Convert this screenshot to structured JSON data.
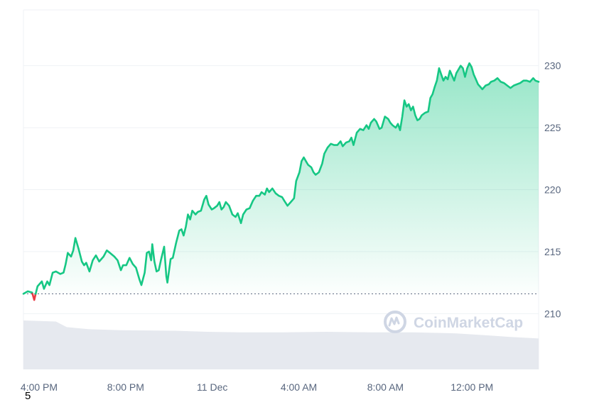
{
  "chart_data": {
    "type": "area",
    "y_ticks": [
      210,
      215,
      220,
      225,
      230
    ],
    "x_ticks": [
      "4:00 PM",
      "8:00 PM",
      "11 Dec",
      "4:00 AM",
      "8:00 AM",
      "12:00 PM"
    ],
    "x_tick_hours": [
      0,
      4,
      8,
      12,
      16,
      20
    ],
    "x_range_hours": [
      0,
      23.8
    ],
    "ylim": [
      205.5,
      234.5
    ],
    "baseline": 211.6,
    "series": [
      {
        "values": [
          [
            0.0,
            211.6
          ],
          [
            0.2,
            211.8
          ],
          [
            0.4,
            211.7
          ],
          [
            0.5,
            211.1
          ],
          [
            0.55,
            211.5
          ],
          [
            0.65,
            212.2
          ],
          [
            0.85,
            212.6
          ],
          [
            0.95,
            212.0
          ],
          [
            1.1,
            212.6
          ],
          [
            1.2,
            212.3
          ],
          [
            1.35,
            213.3
          ],
          [
            1.5,
            213.4
          ],
          [
            1.7,
            213.2
          ],
          [
            1.85,
            213.3
          ],
          [
            1.95,
            214.0
          ],
          [
            2.05,
            214.9
          ],
          [
            2.2,
            214.6
          ],
          [
            2.3,
            215.1
          ],
          [
            2.4,
            216.1
          ],
          [
            2.55,
            215.2
          ],
          [
            2.7,
            214.2
          ],
          [
            2.8,
            213.9
          ],
          [
            2.9,
            214.1
          ],
          [
            3.05,
            213.4
          ],
          [
            3.2,
            214.3
          ],
          [
            3.35,
            214.7
          ],
          [
            3.5,
            214.2
          ],
          [
            3.7,
            214.6
          ],
          [
            3.85,
            215.1
          ],
          [
            4.0,
            214.9
          ],
          [
            4.2,
            214.6
          ],
          [
            4.35,
            214.3
          ],
          [
            4.5,
            213.5
          ],
          [
            4.6,
            213.9
          ],
          [
            4.75,
            213.9
          ],
          [
            4.9,
            214.5
          ],
          [
            5.05,
            214.0
          ],
          [
            5.2,
            213.7
          ],
          [
            5.35,
            212.8
          ],
          [
            5.45,
            212.3
          ],
          [
            5.6,
            213.3
          ],
          [
            5.7,
            214.9
          ],
          [
            5.8,
            215.0
          ],
          [
            5.9,
            214.3
          ],
          [
            5.95,
            215.6
          ],
          [
            6.05,
            214.2
          ],
          [
            6.15,
            213.4
          ],
          [
            6.25,
            213.5
          ],
          [
            6.35,
            214.3
          ],
          [
            6.5,
            215.4
          ],
          [
            6.6,
            213.0
          ],
          [
            6.65,
            212.5
          ],
          [
            6.8,
            214.4
          ],
          [
            6.9,
            214.5
          ],
          [
            7.05,
            215.7
          ],
          [
            7.2,
            216.7
          ],
          [
            7.3,
            216.8
          ],
          [
            7.4,
            216.3
          ],
          [
            7.5,
            217.0
          ],
          [
            7.6,
            218.0
          ],
          [
            7.7,
            217.6
          ],
          [
            7.8,
            218.3
          ],
          [
            7.95,
            218.0
          ],
          [
            8.05,
            218.2
          ],
          [
            8.2,
            218.3
          ],
          [
            8.35,
            219.2
          ],
          [
            8.45,
            219.5
          ],
          [
            8.55,
            218.8
          ],
          [
            8.7,
            218.4
          ],
          [
            8.8,
            218.5
          ],
          [
            8.95,
            218.7
          ],
          [
            9.05,
            219.0
          ],
          [
            9.15,
            218.4
          ],
          [
            9.25,
            218.6
          ],
          [
            9.35,
            219.0
          ],
          [
            9.5,
            218.7
          ],
          [
            9.65,
            218.0
          ],
          [
            9.8,
            217.8
          ],
          [
            9.9,
            218.1
          ],
          [
            10.05,
            217.3
          ],
          [
            10.15,
            218.0
          ],
          [
            10.3,
            218.4
          ],
          [
            10.45,
            218.5
          ],
          [
            10.6,
            219.1
          ],
          [
            10.75,
            219.5
          ],
          [
            10.9,
            219.5
          ],
          [
            11.0,
            219.8
          ],
          [
            11.15,
            219.6
          ],
          [
            11.25,
            220.1
          ],
          [
            11.35,
            219.8
          ],
          [
            11.5,
            220.1
          ],
          [
            11.65,
            219.7
          ],
          [
            11.8,
            219.5
          ],
          [
            11.95,
            219.4
          ],
          [
            12.05,
            219.1
          ],
          [
            12.2,
            218.7
          ],
          [
            12.35,
            219.0
          ],
          [
            12.5,
            219.3
          ],
          [
            12.6,
            220.7
          ],
          [
            12.75,
            221.4
          ],
          [
            12.85,
            222.3
          ],
          [
            12.95,
            222.6
          ],
          [
            13.05,
            222.3
          ],
          [
            13.15,
            222.0
          ],
          [
            13.3,
            221.8
          ],
          [
            13.4,
            221.4
          ],
          [
            13.5,
            221.2
          ],
          [
            13.65,
            221.4
          ],
          [
            13.8,
            222.1
          ],
          [
            13.9,
            222.9
          ],
          [
            14.05,
            223.4
          ],
          [
            14.2,
            223.7
          ],
          [
            14.35,
            223.6
          ],
          [
            14.5,
            223.6
          ],
          [
            14.65,
            223.9
          ],
          [
            14.75,
            223.5
          ],
          [
            14.9,
            223.8
          ],
          [
            15.05,
            223.9
          ],
          [
            15.15,
            224.2
          ],
          [
            15.25,
            223.6
          ],
          [
            15.4,
            224.6
          ],
          [
            15.55,
            224.9
          ],
          [
            15.7,
            224.8
          ],
          [
            15.85,
            225.2
          ],
          [
            15.95,
            224.9
          ],
          [
            16.05,
            225.4
          ],
          [
            16.2,
            225.7
          ],
          [
            16.3,
            225.5
          ],
          [
            16.45,
            224.9
          ],
          [
            16.55,
            225.0
          ],
          [
            16.7,
            225.9
          ],
          [
            16.85,
            225.7
          ],
          [
            16.95,
            225.4
          ],
          [
            17.05,
            225.2
          ],
          [
            17.2,
            225.0
          ],
          [
            17.3,
            225.3
          ],
          [
            17.4,
            224.8
          ],
          [
            17.5,
            225.9
          ],
          [
            17.6,
            227.2
          ],
          [
            17.7,
            226.7
          ],
          [
            17.8,
            226.9
          ],
          [
            17.9,
            226.4
          ],
          [
            18.0,
            226.7
          ],
          [
            18.1,
            226.0
          ],
          [
            18.2,
            225.6
          ],
          [
            18.3,
            225.7
          ],
          [
            18.4,
            226.0
          ],
          [
            18.55,
            226.2
          ],
          [
            18.7,
            226.3
          ],
          [
            18.8,
            227.4
          ],
          [
            18.9,
            227.7
          ],
          [
            19.0,
            228.3
          ],
          [
            19.1,
            228.8
          ],
          [
            19.2,
            229.8
          ],
          [
            19.3,
            229.3
          ],
          [
            19.4,
            228.8
          ],
          [
            19.5,
            229.1
          ],
          [
            19.6,
            228.9
          ],
          [
            19.7,
            229.6
          ],
          [
            19.8,
            229.2
          ],
          [
            19.9,
            228.8
          ],
          [
            20.0,
            229.4
          ],
          [
            20.1,
            229.7
          ],
          [
            20.2,
            230.0
          ],
          [
            20.3,
            229.8
          ],
          [
            20.4,
            229.1
          ],
          [
            20.5,
            229.8
          ],
          [
            20.6,
            230.2
          ],
          [
            20.7,
            229.9
          ],
          [
            20.8,
            229.3
          ],
          [
            20.9,
            228.9
          ],
          [
            21.0,
            228.5
          ],
          [
            21.1,
            228.3
          ],
          [
            21.2,
            228.1
          ],
          [
            21.35,
            228.4
          ],
          [
            21.5,
            228.5
          ],
          [
            21.6,
            228.7
          ],
          [
            21.75,
            228.8
          ],
          [
            21.9,
            229.0
          ],
          [
            22.05,
            228.7
          ],
          [
            22.2,
            228.6
          ],
          [
            22.35,
            228.4
          ],
          [
            22.5,
            228.2
          ],
          [
            22.65,
            228.4
          ],
          [
            22.8,
            228.5
          ],
          [
            22.95,
            228.6
          ],
          [
            23.1,
            228.8
          ],
          [
            23.25,
            228.8
          ],
          [
            23.4,
            228.7
          ],
          [
            23.55,
            229.0
          ],
          [
            23.65,
            228.8
          ],
          [
            23.8,
            228.7
          ]
        ]
      }
    ],
    "volume": [
      [
        0,
        0.95
      ],
      [
        1.5,
        0.93
      ],
      [
        2.0,
        0.82
      ],
      [
        3.0,
        0.78
      ],
      [
        4.5,
        0.76
      ],
      [
        7.0,
        0.75
      ],
      [
        8.5,
        0.73
      ],
      [
        10.0,
        0.72
      ],
      [
        12.0,
        0.72
      ],
      [
        14.0,
        0.73
      ],
      [
        16.0,
        0.72
      ],
      [
        18.0,
        0.72
      ],
      [
        20.0,
        0.7
      ],
      [
        21.5,
        0.66
      ],
      [
        22.5,
        0.63
      ],
      [
        23.8,
        0.6
      ]
    ],
    "colors": {
      "up_line": "#16c784",
      "down_line": "#ea3943",
      "grid": "#eff2f5",
      "baseline": "#58667e",
      "volume": "#e6e9ef"
    },
    "grid": true,
    "watermark": "CoinMarketCap"
  },
  "footnote": "5"
}
